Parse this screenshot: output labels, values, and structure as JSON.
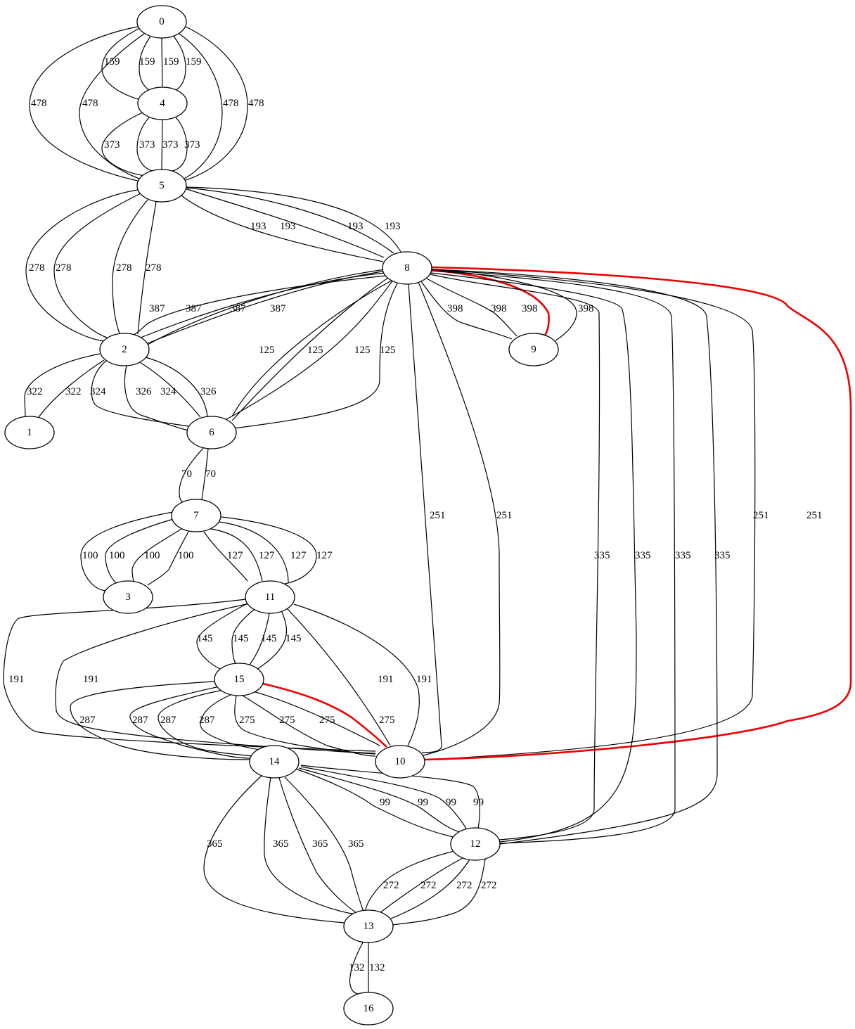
{
  "colors": {
    "edge": "#000000",
    "highlight": "#ee0000",
    "node_fill": "#ffffff"
  },
  "nodes": [
    {
      "id": "0",
      "label": "0"
    },
    {
      "id": "4",
      "label": "4"
    },
    {
      "id": "5",
      "label": "5"
    },
    {
      "id": "8",
      "label": "8"
    },
    {
      "id": "2",
      "label": "2"
    },
    {
      "id": "9",
      "label": "9"
    },
    {
      "id": "1",
      "label": "1"
    },
    {
      "id": "6",
      "label": "6"
    },
    {
      "id": "7",
      "label": "7"
    },
    {
      "id": "3",
      "label": "3"
    },
    {
      "id": "11",
      "label": "11"
    },
    {
      "id": "15",
      "label": "15"
    },
    {
      "id": "10",
      "label": "10"
    },
    {
      "id": "14",
      "label": "14"
    },
    {
      "id": "12",
      "label": "12"
    },
    {
      "id": "13",
      "label": "13"
    },
    {
      "id": "16",
      "label": "16"
    }
  ],
  "edges": [
    {
      "source": "0",
      "target": "4",
      "label": "159"
    },
    {
      "source": "0",
      "target": "4",
      "label": "159"
    },
    {
      "source": "0",
      "target": "4",
      "label": "159"
    },
    {
      "source": "0",
      "target": "4",
      "label": "159"
    },
    {
      "source": "0",
      "target": "5",
      "label": "478"
    },
    {
      "source": "0",
      "target": "5",
      "label": "478"
    },
    {
      "source": "0",
      "target": "5",
      "label": "478"
    },
    {
      "source": "0",
      "target": "5",
      "label": "478"
    },
    {
      "source": "4",
      "target": "5",
      "label": "373"
    },
    {
      "source": "4",
      "target": "5",
      "label": "373"
    },
    {
      "source": "4",
      "target": "5",
      "label": "373"
    },
    {
      "source": "4",
      "target": "5",
      "label": "373"
    },
    {
      "source": "5",
      "target": "2",
      "label": "278"
    },
    {
      "source": "5",
      "target": "2",
      "label": "278"
    },
    {
      "source": "5",
      "target": "2",
      "label": "278"
    },
    {
      "source": "5",
      "target": "2",
      "label": "278"
    },
    {
      "source": "5",
      "target": "8",
      "label": "193"
    },
    {
      "source": "5",
      "target": "8",
      "label": "193"
    },
    {
      "source": "5",
      "target": "8",
      "label": "193"
    },
    {
      "source": "5",
      "target": "8",
      "label": "193"
    },
    {
      "source": "8",
      "target": "2",
      "label": "387"
    },
    {
      "source": "8",
      "target": "2",
      "label": "387"
    },
    {
      "source": "8",
      "target": "2",
      "label": "387"
    },
    {
      "source": "8",
      "target": "2",
      "label": "387"
    },
    {
      "source": "8",
      "target": "9",
      "label": "398"
    },
    {
      "source": "8",
      "target": "9",
      "label": "398"
    },
    {
      "source": "8",
      "target": "9",
      "label": "398",
      "highlight": true
    },
    {
      "source": "8",
      "target": "9",
      "label": "398"
    },
    {
      "source": "8",
      "target": "6",
      "label": "125"
    },
    {
      "source": "8",
      "target": "6",
      "label": "125"
    },
    {
      "source": "8",
      "target": "6",
      "label": "125"
    },
    {
      "source": "8",
      "target": "6",
      "label": "125"
    },
    {
      "source": "8",
      "target": "10",
      "label": "251"
    },
    {
      "source": "8",
      "target": "10",
      "label": "251"
    },
    {
      "source": "8",
      "target": "10",
      "label": "251"
    },
    {
      "source": "8",
      "target": "10",
      "label": "251",
      "highlight": true
    },
    {
      "source": "8",
      "target": "12",
      "label": "335"
    },
    {
      "source": "8",
      "target": "12",
      "label": "335"
    },
    {
      "source": "8",
      "target": "12",
      "label": "335"
    },
    {
      "source": "8",
      "target": "12",
      "label": "335"
    },
    {
      "source": "2",
      "target": "1",
      "label": "322"
    },
    {
      "source": "2",
      "target": "1",
      "label": "322"
    },
    {
      "source": "2",
      "target": "6",
      "label": "324"
    },
    {
      "source": "2",
      "target": "6",
      "label": "326"
    },
    {
      "source": "2",
      "target": "6",
      "label": "324"
    },
    {
      "source": "2",
      "target": "6",
      "label": "326"
    },
    {
      "source": "6",
      "target": "7",
      "label": "70"
    },
    {
      "source": "6",
      "target": "7",
      "label": "70"
    },
    {
      "source": "7",
      "target": "3",
      "label": "100"
    },
    {
      "source": "7",
      "target": "3",
      "label": "100"
    },
    {
      "source": "7",
      "target": "3",
      "label": "100"
    },
    {
      "source": "7",
      "target": "3",
      "label": "100"
    },
    {
      "source": "7",
      "target": "11",
      "label": "127"
    },
    {
      "source": "7",
      "target": "11",
      "label": "127"
    },
    {
      "source": "7",
      "target": "11",
      "label": "127"
    },
    {
      "source": "7",
      "target": "11",
      "label": "127"
    },
    {
      "source": "11",
      "target": "15",
      "label": "145"
    },
    {
      "source": "11",
      "target": "15",
      "label": "145"
    },
    {
      "source": "11",
      "target": "15",
      "label": "145"
    },
    {
      "source": "11",
      "target": "15",
      "label": "145"
    },
    {
      "source": "11",
      "target": "10",
      "label": "191"
    },
    {
      "source": "11",
      "target": "10",
      "label": "191"
    },
    {
      "source": "11",
      "target": "10",
      "label": "191"
    },
    {
      "source": "11",
      "target": "10",
      "label": "191"
    },
    {
      "source": "15",
      "target": "14",
      "label": "287"
    },
    {
      "source": "15",
      "target": "14",
      "label": "287"
    },
    {
      "source": "15",
      "target": "14",
      "label": "287"
    },
    {
      "source": "15",
      "target": "14",
      "label": "287"
    },
    {
      "source": "15",
      "target": "10",
      "label": "275"
    },
    {
      "source": "15",
      "target": "10",
      "label": "275"
    },
    {
      "source": "15",
      "target": "10",
      "label": "275"
    },
    {
      "source": "15",
      "target": "10",
      "label": "275",
      "highlight": true
    },
    {
      "source": "14",
      "target": "12",
      "label": "99"
    },
    {
      "source": "14",
      "target": "12",
      "label": "99"
    },
    {
      "source": "14",
      "target": "12",
      "label": "99"
    },
    {
      "source": "14",
      "target": "12",
      "label": "99"
    },
    {
      "source": "14",
      "target": "13",
      "label": "365"
    },
    {
      "source": "14",
      "target": "13",
      "label": "365"
    },
    {
      "source": "14",
      "target": "13",
      "label": "365"
    },
    {
      "source": "14",
      "target": "13",
      "label": "365"
    },
    {
      "source": "12",
      "target": "13",
      "label": "272"
    },
    {
      "source": "12",
      "target": "13",
      "label": "272"
    },
    {
      "source": "12",
      "target": "13",
      "label": "272"
    },
    {
      "source": "12",
      "target": "13",
      "label": "272"
    },
    {
      "source": "13",
      "target": "16",
      "label": "132"
    },
    {
      "source": "13",
      "target": "16",
      "label": "132"
    }
  ]
}
